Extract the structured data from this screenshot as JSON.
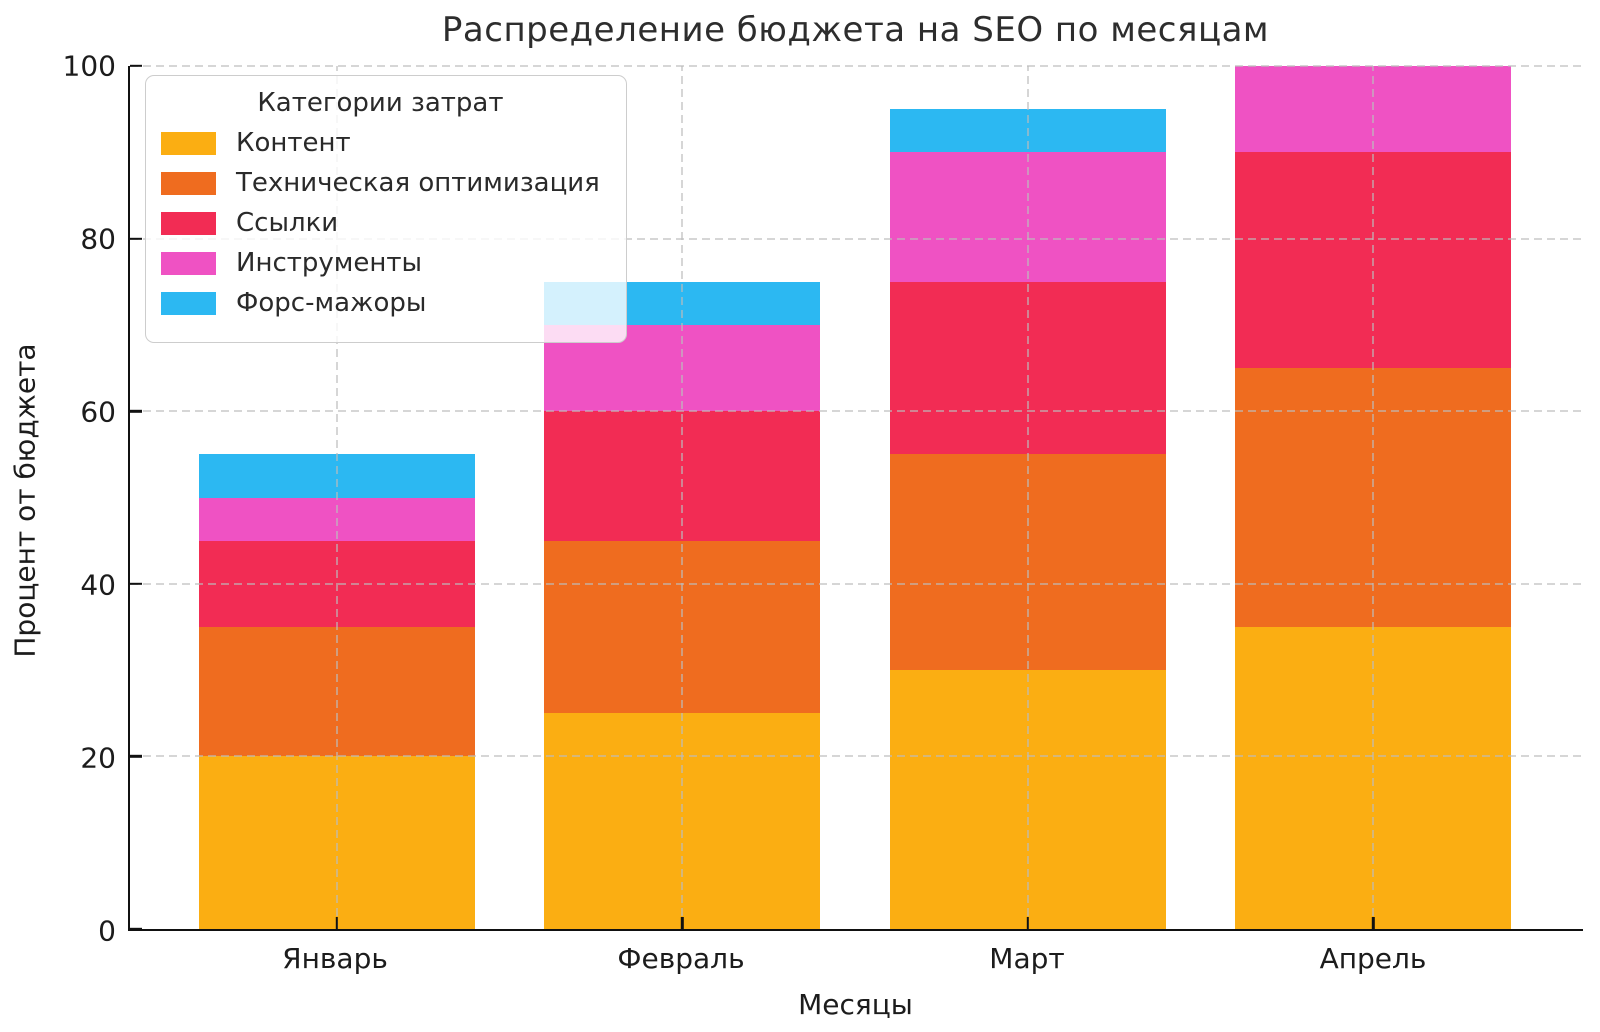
{
  "chart_data": {
    "type": "bar",
    "stacked": true,
    "title": "Распределение бюджета на SEO по месяцам",
    "xlabel": "Месяцы",
    "ylabel": "Процент от бюджета",
    "legend_title": "Категории затрат",
    "legend_position": "upper left",
    "grid": true,
    "categories": [
      "Январь",
      "Февраль",
      "Март",
      "Апрель"
    ],
    "series": [
      {
        "name": "Контент",
        "color": "#FBAE12",
        "values": [
          20,
          25,
          30,
          35
        ]
      },
      {
        "name": "Техническая оптимизация",
        "color": "#EF6C1F",
        "values": [
          15,
          20,
          25,
          30
        ]
      },
      {
        "name": "Ссылки",
        "color": "#F22C54",
        "values": [
          10,
          15,
          20,
          25
        ]
      },
      {
        "name": "Инструменты",
        "color": "#EF52C3",
        "values": [
          5,
          10,
          15,
          10
        ]
      },
      {
        "name": "Форс-мажоры",
        "color": "#2CB8F2",
        "values": [
          5,
          5,
          5,
          0
        ]
      }
    ],
    "totals": [
      55,
      75,
      95,
      100
    ],
    "ylim": [
      0,
      100
    ],
    "yticks": [
      0,
      20,
      40,
      60,
      80,
      100
    ]
  }
}
